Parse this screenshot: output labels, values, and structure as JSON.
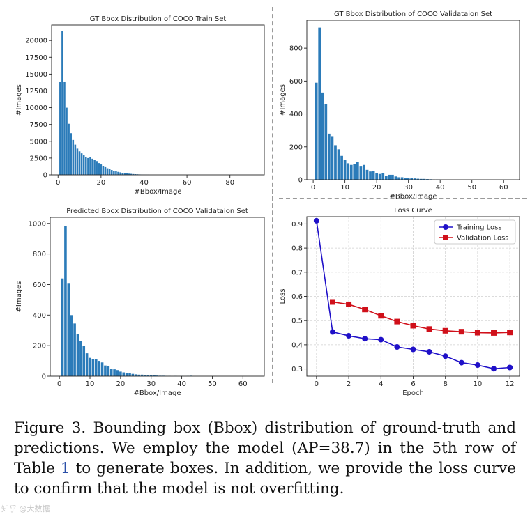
{
  "chart_data": [
    {
      "type": "bar",
      "title": "GT Bbox Distribution of COCO Train Set",
      "xlabel": "#Bbox/Image",
      "ylabel": "#Images",
      "xlim": [
        -3,
        96
      ],
      "ylim": [
        0,
        22300
      ],
      "xticks": [
        0,
        20,
        40,
        60,
        80
      ],
      "yticks": [
        0,
        2500,
        5000,
        7500,
        10000,
        12500,
        15000,
        17500,
        20000
      ],
      "x": [
        1,
        2,
        3,
        4,
        5,
        6,
        7,
        8,
        9,
        10,
        11,
        12,
        13,
        14,
        15,
        16,
        17,
        18,
        19,
        20,
        21,
        22,
        23,
        24,
        25,
        26,
        27,
        28,
        29,
        30,
        31,
        32,
        33,
        34,
        35,
        36,
        37,
        38,
        39,
        40,
        41,
        42
      ],
      "values": [
        13900,
        21400,
        13900,
        10000,
        7600,
        6200,
        5200,
        4500,
        3900,
        3500,
        3200,
        2900,
        2700,
        2500,
        2650,
        2400,
        2200,
        2050,
        1750,
        1550,
        1300,
        1150,
        980,
        850,
        720,
        620,
        520,
        440,
        370,
        310,
        260,
        220,
        180,
        150,
        120,
        100,
        80,
        60,
        50,
        40,
        30,
        25
      ]
    },
    {
      "type": "bar",
      "title": "GT Bbox Distribution of COCO Validataion Set",
      "xlabel": "#Bbox/Image",
      "ylabel": "#Images",
      "xlim": [
        -2,
        65
      ],
      "ylim": [
        0,
        970
      ],
      "xticks": [
        0,
        10,
        20,
        30,
        40,
        50,
        60
      ],
      "yticks": [
        0,
        200,
        400,
        600,
        800
      ],
      "x": [
        1,
        2,
        3,
        4,
        5,
        6,
        7,
        8,
        9,
        10,
        11,
        12,
        13,
        14,
        15,
        16,
        17,
        18,
        19,
        20,
        21,
        22,
        23,
        24,
        25,
        26,
        27,
        28,
        29,
        30,
        31,
        32,
        33,
        34,
        35,
        36,
        37,
        38,
        39,
        40
      ],
      "values": [
        590,
        925,
        530,
        460,
        280,
        265,
        210,
        185,
        145,
        120,
        100,
        90,
        95,
        110,
        80,
        90,
        60,
        50,
        55,
        40,
        35,
        40,
        25,
        30,
        30,
        20,
        15,
        15,
        12,
        10,
        10,
        8,
        6,
        5,
        5,
        4,
        3,
        2,
        2,
        2
      ]
    },
    {
      "type": "bar",
      "title": "Predicted Bbox Distribution of COCO Validataion Set",
      "xlabel": "#Bbox/Image",
      "ylabel": "#Images",
      "xlim": [
        -3,
        67
      ],
      "ylim": [
        0,
        1040
      ],
      "xticks": [
        0,
        10,
        20,
        30,
        40,
        50,
        60
      ],
      "yticks": [
        0,
        200,
        400,
        600,
        800,
        1000
      ],
      "x": [
        1,
        2,
        3,
        4,
        5,
        6,
        7,
        8,
        9,
        10,
        11,
        12,
        13,
        14,
        15,
        16,
        17,
        18,
        19,
        20,
        21,
        22,
        23,
        24,
        25,
        26,
        27,
        28,
        29,
        30,
        31,
        32,
        33,
        34,
        35,
        36,
        38,
        40,
        42,
        43
      ],
      "values": [
        640,
        985,
        610,
        400,
        345,
        275,
        230,
        200,
        150,
        120,
        110,
        110,
        100,
        90,
        70,
        65,
        50,
        45,
        40,
        30,
        25,
        22,
        20,
        15,
        12,
        10,
        10,
        8,
        6,
        5,
        5,
        4,
        3,
        3,
        2,
        2,
        2,
        2,
        2,
        3
      ]
    },
    {
      "type": "line",
      "title": "Loss Curve",
      "xlabel": "Epoch",
      "ylabel": "Loss",
      "xlim": [
        -0.6,
        12.6
      ],
      "ylim": [
        0.27,
        0.93
      ],
      "xticks": [
        0,
        2,
        4,
        6,
        8,
        10,
        12
      ],
      "yticks": [
        0.3,
        0.4,
        0.5,
        0.6,
        0.7,
        0.8,
        0.9
      ],
      "grid": true,
      "legend": "top-right",
      "series": [
        {
          "name": "Training Loss",
          "color": "#1f10c8",
          "marker": "circle",
          "x": [
            0,
            1,
            2,
            3,
            4,
            5,
            6,
            7,
            8,
            9,
            10,
            11,
            12
          ],
          "values": [
            0.913,
            0.453,
            0.437,
            0.425,
            0.421,
            0.391,
            0.381,
            0.371,
            0.353,
            0.326,
            0.316,
            0.301,
            0.306
          ]
        },
        {
          "name": "Validation Loss",
          "color": "#d0101a",
          "marker": "square",
          "x": [
            1,
            2,
            3,
            4,
            5,
            6,
            7,
            8,
            9,
            10,
            11,
            12
          ],
          "values": [
            0.577,
            0.567,
            0.546,
            0.52,
            0.496,
            0.479,
            0.465,
            0.458,
            0.454,
            0.45,
            0.449,
            0.451
          ]
        }
      ]
    }
  ],
  "bar_color": "#2b7bb9",
  "caption": {
    "part1": "Figure 3. Bounding box (Bbox) distribution of ground-truth and predictions. We employ the model (AP=38.7) in the 5th row of Table ",
    "ref": "1",
    "part2": " to generate boxes. In addition, we provide the loss curve to confirm that the model is not overfitting."
  },
  "watermark": "知乎 @大数据"
}
